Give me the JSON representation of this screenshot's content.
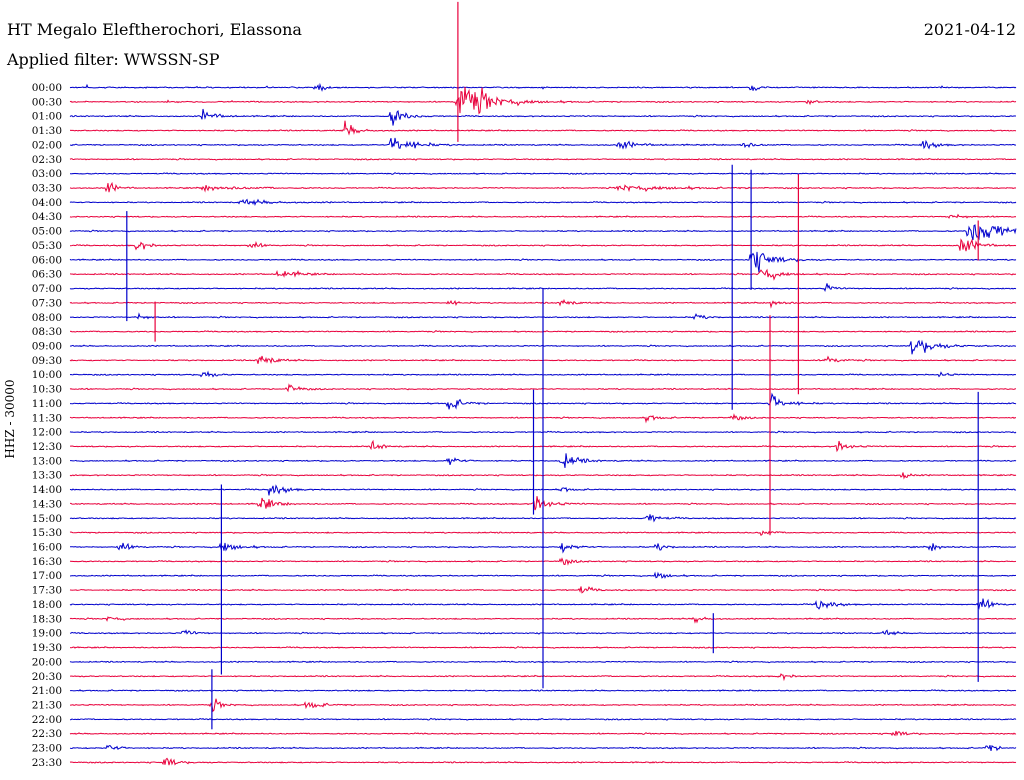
{
  "header": {
    "station": "HT Megalo Eleftherochori, Elassona",
    "date": "2021-04-12",
    "filter": "Applied filter: WWSSN-SP"
  },
  "chart_data": {
    "type": "line",
    "title": "HT Megalo Eleftherochori, Elassona",
    "subtitle": "Applied filter: WWSSN-SP",
    "ylabel": "HHZ - 30000",
    "xlabel": "",
    "grid": false,
    "colors": {
      "even_trace": "#0000cc",
      "odd_trace": "#e8003c"
    },
    "trace_labels": [
      "00:00",
      "00:30",
      "01:00",
      "01:30",
      "02:00",
      "02:30",
      "03:00",
      "03:30",
      "04:00",
      "04:30",
      "05:00",
      "05:30",
      "06:00",
      "06:30",
      "07:00",
      "07:30",
      "08:00",
      "08:30",
      "09:00",
      "09:30",
      "10:00",
      "10:30",
      "11:00",
      "11:30",
      "12:00",
      "12:30",
      "13:00",
      "13:30",
      "14:00",
      "14:30",
      "15:00",
      "15:30",
      "16:00",
      "16:30",
      "17:00",
      "17:30",
      "18:00",
      "18:30",
      "19:00",
      "19:30",
      "20:00",
      "20:30",
      "21:00",
      "21:30",
      "22:00",
      "22:30",
      "23:00",
      "23:30"
    ]
  }
}
